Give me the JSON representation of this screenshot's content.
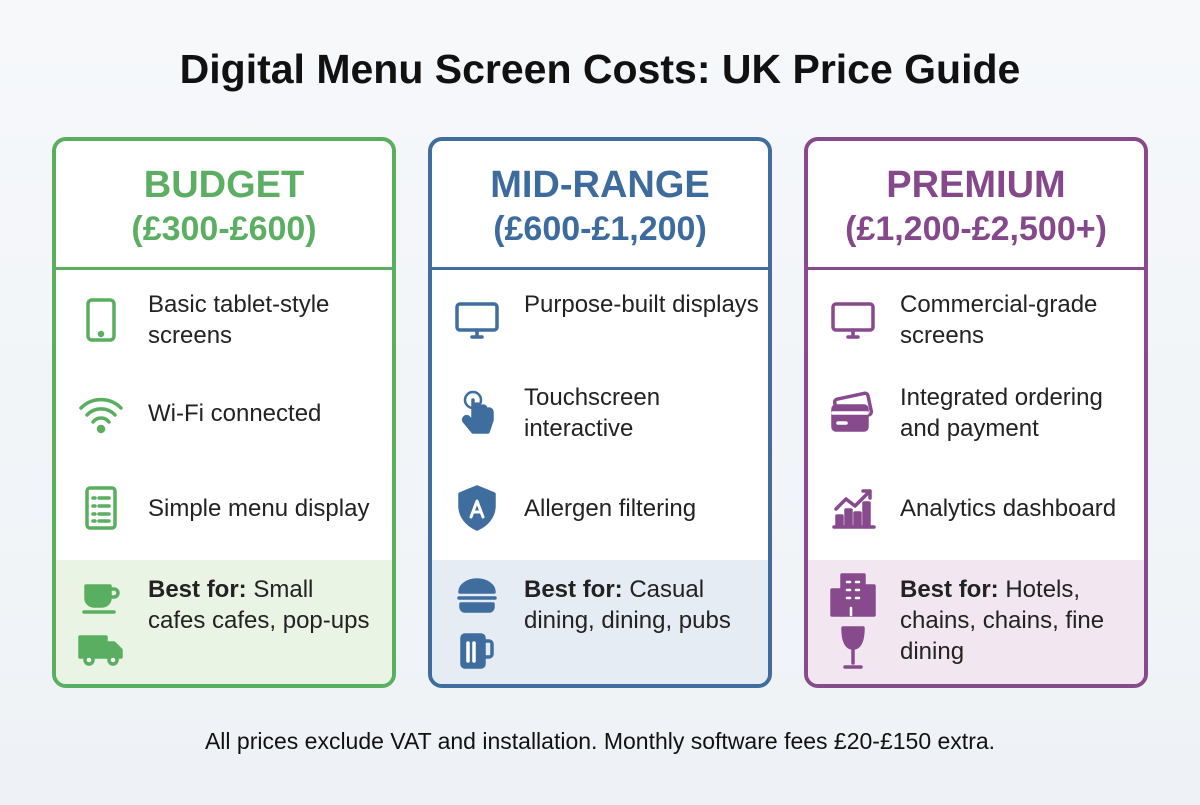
{
  "title": "Digital Menu Screen Costs: UK Price Guide",
  "tiers": [
    {
      "name": "BUDGET",
      "price": "(£300-£600)",
      "features": [
        "Basic tablet-style screens",
        "Wi-Fi connected",
        "Simple menu display"
      ],
      "best_for_label": "Best for:",
      "best_for_text": "Small cafes cafes, pop-ups"
    },
    {
      "name": "MID-RANGE",
      "price": "(£600-£1,200)",
      "features": [
        "Purpose-built displays",
        "Touchscreen interactive",
        "Allergen filtering"
      ],
      "best_for_label": "Best for:",
      "best_for_text": "Casual dining, dining, pubs"
    },
    {
      "name": "PREMIUM",
      "price": "(£1,200-£2,500+)",
      "features": [
        "Commercial-grade screens",
        "Integrated ordering and payment",
        "Analytics dashboard"
      ],
      "best_for_label": "Best for:",
      "best_for_text": "Hotels, chains, chains, fine dining"
    }
  ],
  "footer": "All prices exclude VAT and installation. Monthly software fees £20-£150 extra."
}
